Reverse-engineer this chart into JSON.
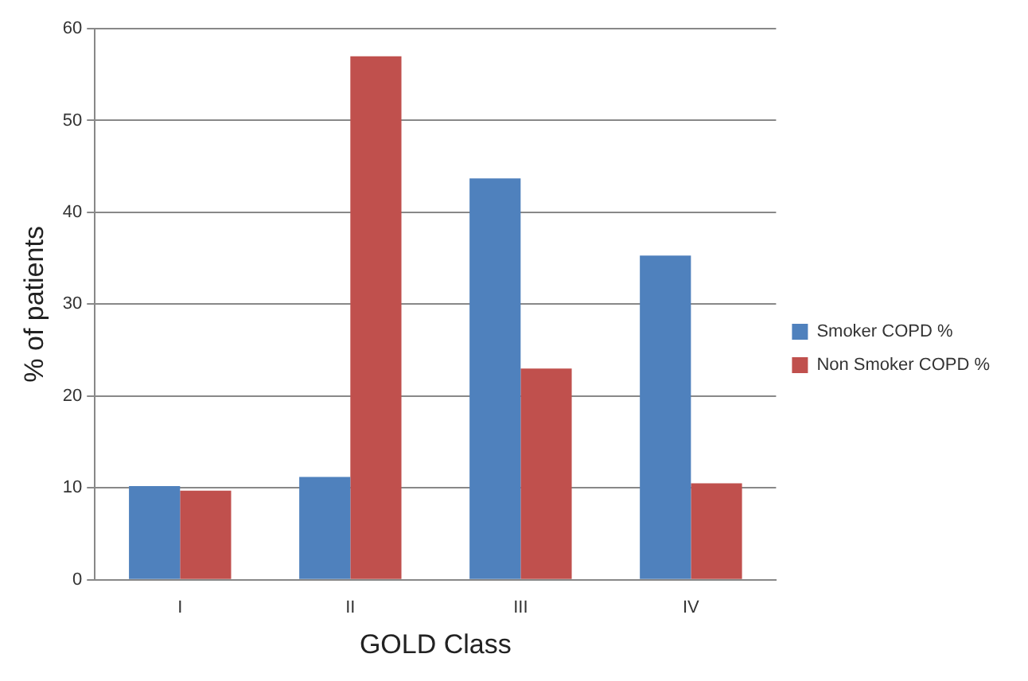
{
  "chart_data": {
    "type": "bar",
    "xlabel": "GOLD Class",
    "ylabel": "% of patients",
    "categories": [
      "I",
      "II",
      "III",
      "IV"
    ],
    "series": [
      {
        "name": "Smoker COPD %",
        "color": "#4f81bd",
        "values": [
          10.2,
          11.2,
          43.7,
          35.3
        ]
      },
      {
        "name": "Non Smoker COPD %",
        "color": "#c0504d",
        "values": [
          9.7,
          57,
          23,
          10.5
        ]
      }
    ],
    "ylim": [
      0,
      60
    ],
    "yticks": [
      0,
      10,
      20,
      30,
      40,
      50,
      60
    ],
    "grid": "y",
    "legend": "right"
  }
}
